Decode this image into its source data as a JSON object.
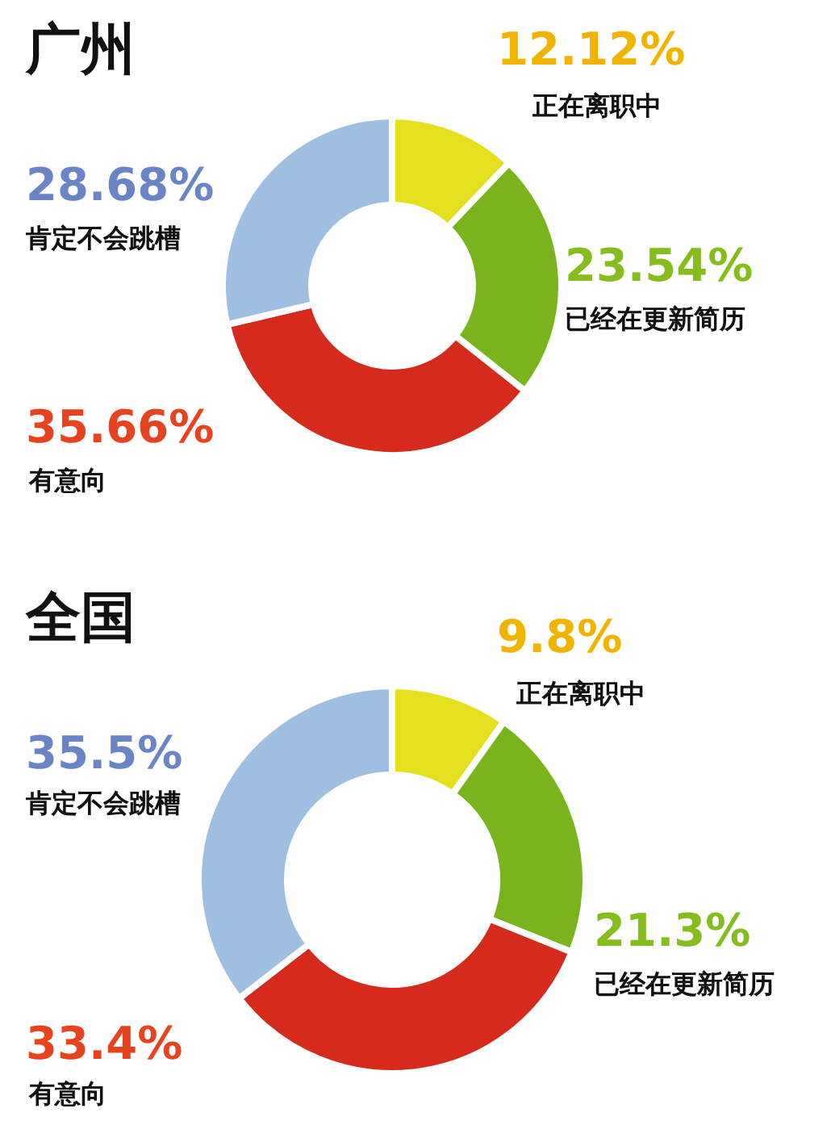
{
  "chart_data": [
    {
      "type": "donut",
      "title": "广州",
      "categories": [
        "正在离职中",
        "已经在更新简历",
        "有意向",
        "肯定不会跳槽"
      ],
      "values": [
        12.12,
        23.54,
        35.66,
        28.68
      ],
      "value_labels": [
        "12.12%",
        "23.54%",
        "35.66%",
        "28.68%"
      ],
      "colors": [
        "#e6df1e",
        "#79b41c",
        "#d62a1c",
        "#9fbfe2"
      ]
    },
    {
      "type": "donut",
      "title": "全国",
      "categories": [
        "正在离职中",
        "已经在更新简历",
        "有意向",
        "肯定不会跳槽"
      ],
      "values": [
        9.8,
        21.3,
        33.4,
        35.5
      ],
      "value_labels": [
        "9.8%",
        "21.3%",
        "33.4%",
        "35.5%"
      ],
      "colors": [
        "#e6df1e",
        "#79b41c",
        "#d62a1c",
        "#9fbfe2"
      ]
    }
  ]
}
